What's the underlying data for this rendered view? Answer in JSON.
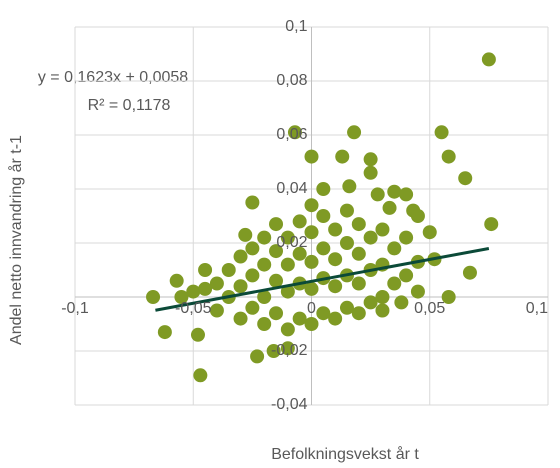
{
  "chart_data": {
    "type": "scatter",
    "x_label": "Befolkningsvekst år t",
    "y_label": "Andel netto innvandring år t-1",
    "xlim": [
      -0.1,
      0.1
    ],
    "ylim": [
      -0.04,
      0.1
    ],
    "xticks": [
      {
        "value": -0.1,
        "label": "-0,1"
      },
      {
        "value": -0.05,
        "label": "-0,05"
      },
      {
        "value": 0,
        "label": "0"
      },
      {
        "value": 0.05,
        "label": "0,05"
      },
      {
        "value": 0.1,
        "label": "0,1"
      }
    ],
    "yticks": [
      {
        "value": -0.04,
        "label": "-0,04"
      },
      {
        "value": -0.02,
        "label": "-0,02"
      },
      {
        "value": 0.02,
        "label": "0,02"
      },
      {
        "value": 0.04,
        "label": "0,04"
      },
      {
        "value": 0.06,
        "label": "0,06"
      },
      {
        "value": 0.08,
        "label": "0,08"
      },
      {
        "value": 0.1,
        "label": "0,1"
      }
    ],
    "grid": true,
    "series": [
      {
        "color": "#7f9a24",
        "x": [
          0.075,
          0.055,
          0.058,
          0.065,
          0.076,
          0.067,
          0.058,
          -0.007,
          0.018,
          0,
          0.013,
          0.025,
          0.025,
          -0.067,
          -0.062,
          -0.048,
          -0.047,
          -0.023,
          -0.01,
          -0.016,
          0.05,
          0.052,
          0.045,
          0.04,
          0.035,
          0.043,
          -0.025,
          -0.028,
          -0.045,
          -0.057,
          -0.05,
          0.016,
          0.005,
          0.028,
          0.033,
          -0.04,
          -0.04,
          -0.035,
          -0.035,
          -0.03,
          -0.03,
          -0.03,
          -0.025,
          -0.025,
          -0.025,
          -0.02,
          -0.02,
          -0.02,
          -0.02,
          -0.015,
          -0.015,
          -0.015,
          -0.015,
          -0.01,
          -0.01,
          -0.01,
          -0.01,
          -0.005,
          -0.005,
          -0.005,
          -0.005,
          0,
          0,
          0,
          0,
          0,
          0.005,
          0.005,
          0.005,
          0.005,
          0.01,
          0.01,
          0.01,
          0.01,
          0.015,
          0.015,
          0.015,
          0.015,
          0.02,
          0.02,
          0.02,
          0.02,
          0.025,
          0.025,
          0.025,
          0.03,
          0.03,
          0.03,
          0.035,
          0.035,
          0.04,
          0.04,
          0.045,
          0.045,
          -0.045,
          -0.055,
          0.03,
          0.038
        ],
        "values": [
          0.088,
          0.061,
          0.052,
          0.044,
          0.027,
          0.009,
          0,
          0.061,
          0.061,
          0.052,
          0.052,
          0.051,
          0.046,
          0,
          -0.013,
          -0.014,
          -0.029,
          -0.022,
          -0.019,
          -0.02,
          0.024,
          0.014,
          0.013,
          0.038,
          0.039,
          0.032,
          0.035,
          0.023,
          0.01,
          0.006,
          0.002,
          0.041,
          0.04,
          0.038,
          0.033,
          -0.005,
          0.005,
          0,
          0.01,
          -0.008,
          0.004,
          0.015,
          -0.004,
          0.008,
          0.018,
          -0.01,
          0,
          0.012,
          0.022,
          -0.006,
          0.006,
          0.017,
          0.027,
          -0.012,
          0.002,
          0.012,
          0.022,
          -0.008,
          0.005,
          0.016,
          0.028,
          -0.01,
          0.003,
          0.013,
          0.024,
          0.034,
          -0.006,
          0.007,
          0.018,
          0.03,
          -0.008,
          0.004,
          0.014,
          0.025,
          -0.004,
          0.008,
          0.02,
          0.032,
          -0.006,
          0.005,
          0.016,
          0.027,
          -0.002,
          0.01,
          0.022,
          0,
          0.012,
          0.025,
          0.005,
          0.018,
          0.008,
          0.022,
          0.002,
          0.03,
          0.003,
          0,
          -0.005,
          -0.002
        ]
      }
    ],
    "trendline": {
      "slope": 0.1623,
      "intercept": 0.0058,
      "x": [
        -0.066,
        0.075
      ],
      "color": "#0b4a38",
      "label": "y = 0,1623x + 0,0058",
      "r2_label": "R² = 0,1178"
    }
  }
}
